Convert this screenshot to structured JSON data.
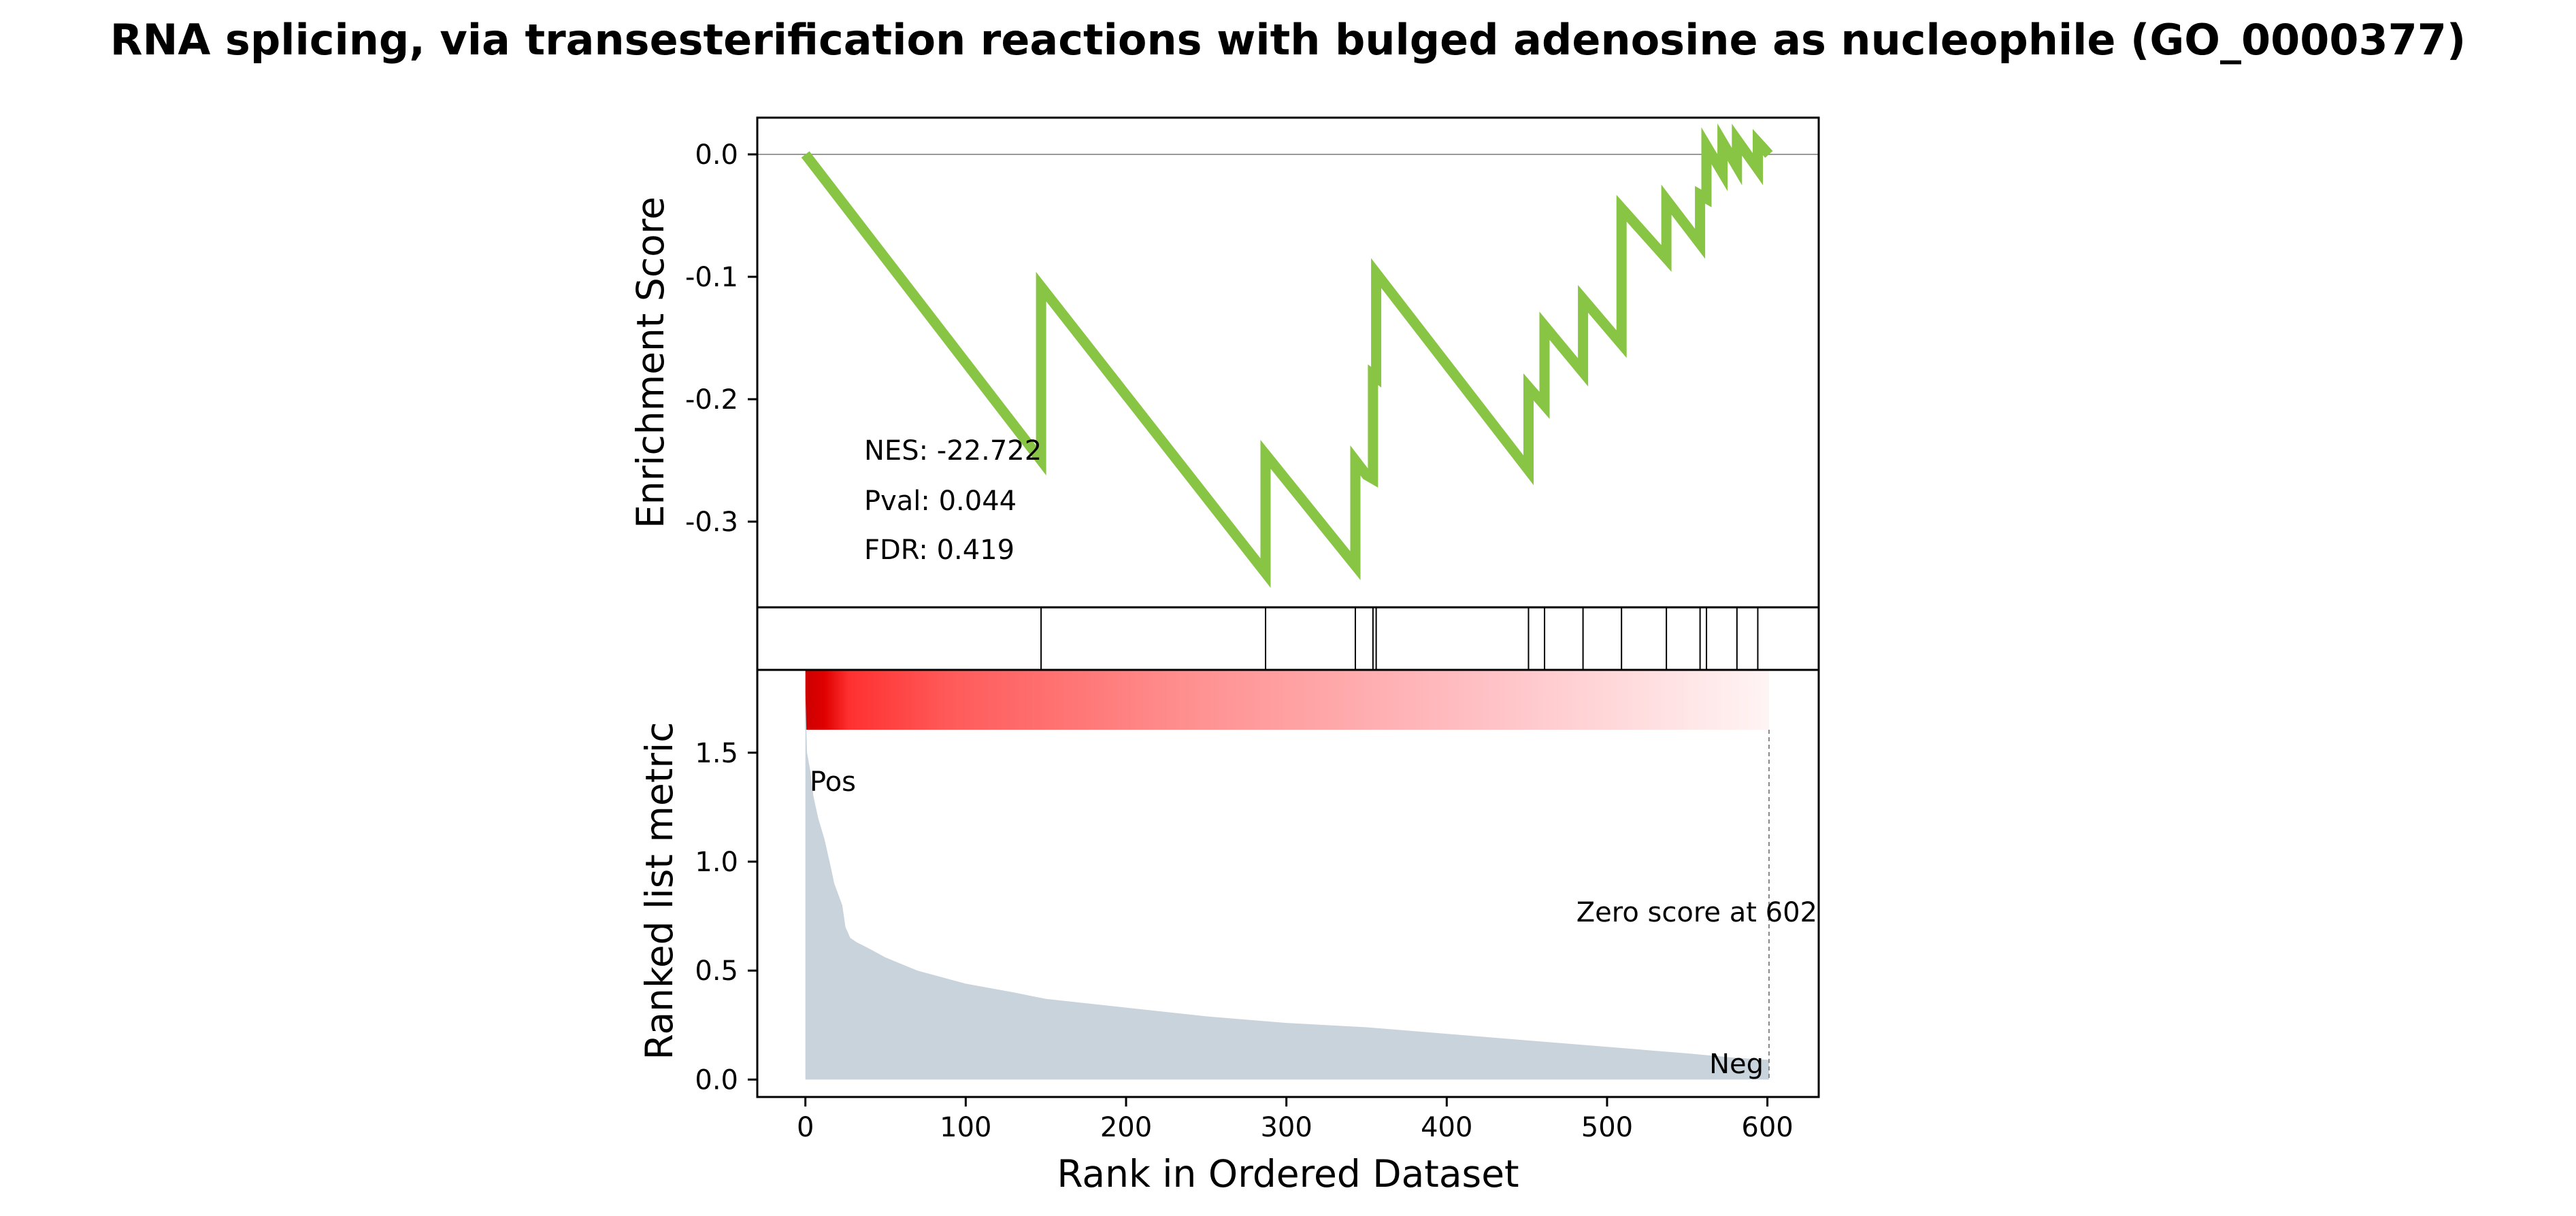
{
  "chart_data": {
    "type": "line",
    "title": "RNA splicing, via transesterification reactions with bulged adenosine as nucleophile (GO_0000377)",
    "colors": {
      "es_line": "#88c544",
      "metric_fill": "#c8d3dc",
      "pos_label": "#e00000",
      "neg_label": "#0000ee",
      "heat_start": "#cc0000"
    },
    "top_panel": {
      "ylabel": "Enrichment Score",
      "ylim": [
        -0.37,
        0.03
      ],
      "yticks": [
        {
          "value": 0.0,
          "label": "0.0"
        },
        {
          "value": -0.1,
          "label": "-0.1"
        },
        {
          "value": -0.2,
          "label": "-0.2"
        },
        {
          "value": -0.3,
          "label": "-0.3"
        }
      ],
      "zero_line": true,
      "series": [
        {
          "x": [
            0,
            147,
            147,
            287,
            287,
            343,
            343,
            350,
            354,
            354,
            356,
            356,
            451,
            451,
            461,
            461,
            485,
            485,
            509,
            509,
            537,
            537,
            558,
            558,
            562,
            562,
            572,
            572,
            581,
            581,
            594,
            594,
            601
          ],
          "y": [
            0.0,
            -0.25,
            -0.108,
            -0.342,
            -0.245,
            -0.336,
            -0.25,
            -0.262,
            -0.265,
            -0.18,
            -0.182,
            -0.097,
            -0.258,
            -0.19,
            -0.205,
            -0.14,
            -0.178,
            -0.118,
            -0.155,
            -0.044,
            -0.085,
            -0.037,
            -0.073,
            -0.033,
            -0.036,
            0.007,
            -0.015,
            0.01,
            -0.01,
            0.012,
            -0.012,
            0.01,
            0.0
          ]
        }
      ],
      "annotations": [
        {
          "text": "NES: -22.722"
        },
        {
          "text": "Pval: 0.044"
        },
        {
          "text": "FDR: 0.419"
        }
      ]
    },
    "hits_panel": {
      "hit_ranks": [
        147,
        287,
        343,
        354,
        356,
        451,
        461,
        485,
        509,
        537,
        558,
        562,
        581,
        594
      ]
    },
    "bottom_panel": {
      "ylabel": "Ranked list metric",
      "xlabel": "Rank in Ordered Dataset",
      "xlim": [
        -30,
        632
      ],
      "ylim": [
        -0.08,
        1.88
      ],
      "xticks": [
        {
          "value": 0,
          "label": "0"
        },
        {
          "value": 100,
          "label": "100"
        },
        {
          "value": 200,
          "label": "200"
        },
        {
          "value": 300,
          "label": "300"
        },
        {
          "value": 400,
          "label": "400"
        },
        {
          "value": 500,
          "label": "500"
        },
        {
          "value": 600,
          "label": "600"
        }
      ],
      "yticks": [
        {
          "value": 0.0,
          "label": "0.0"
        },
        {
          "value": 0.5,
          "label": "0.5"
        },
        {
          "value": 1.0,
          "label": "1.0"
        },
        {
          "value": 1.5,
          "label": "1.5"
        }
      ],
      "metric_curve": {
        "x": [
          0,
          1,
          3,
          5,
          8,
          12,
          16,
          18,
          20,
          23,
          25,
          28,
          32,
          40,
          50,
          60,
          70,
          80,
          100,
          130,
          150,
          200,
          250,
          300,
          350,
          400,
          450,
          500,
          550,
          580,
          601
        ],
        "y": [
          1.78,
          1.5,
          1.42,
          1.3,
          1.2,
          1.1,
          0.97,
          0.9,
          0.86,
          0.8,
          0.7,
          0.65,
          0.63,
          0.6,
          0.56,
          0.53,
          0.5,
          0.48,
          0.44,
          0.4,
          0.37,
          0.33,
          0.29,
          0.26,
          0.24,
          0.21,
          0.18,
          0.15,
          0.12,
          0.1,
          0.09
        ]
      },
      "zero_score_rank": 601,
      "labels": {
        "pos": "Pos",
        "neg": "Neg",
        "zero_score": "Zero score at 602"
      }
    }
  }
}
